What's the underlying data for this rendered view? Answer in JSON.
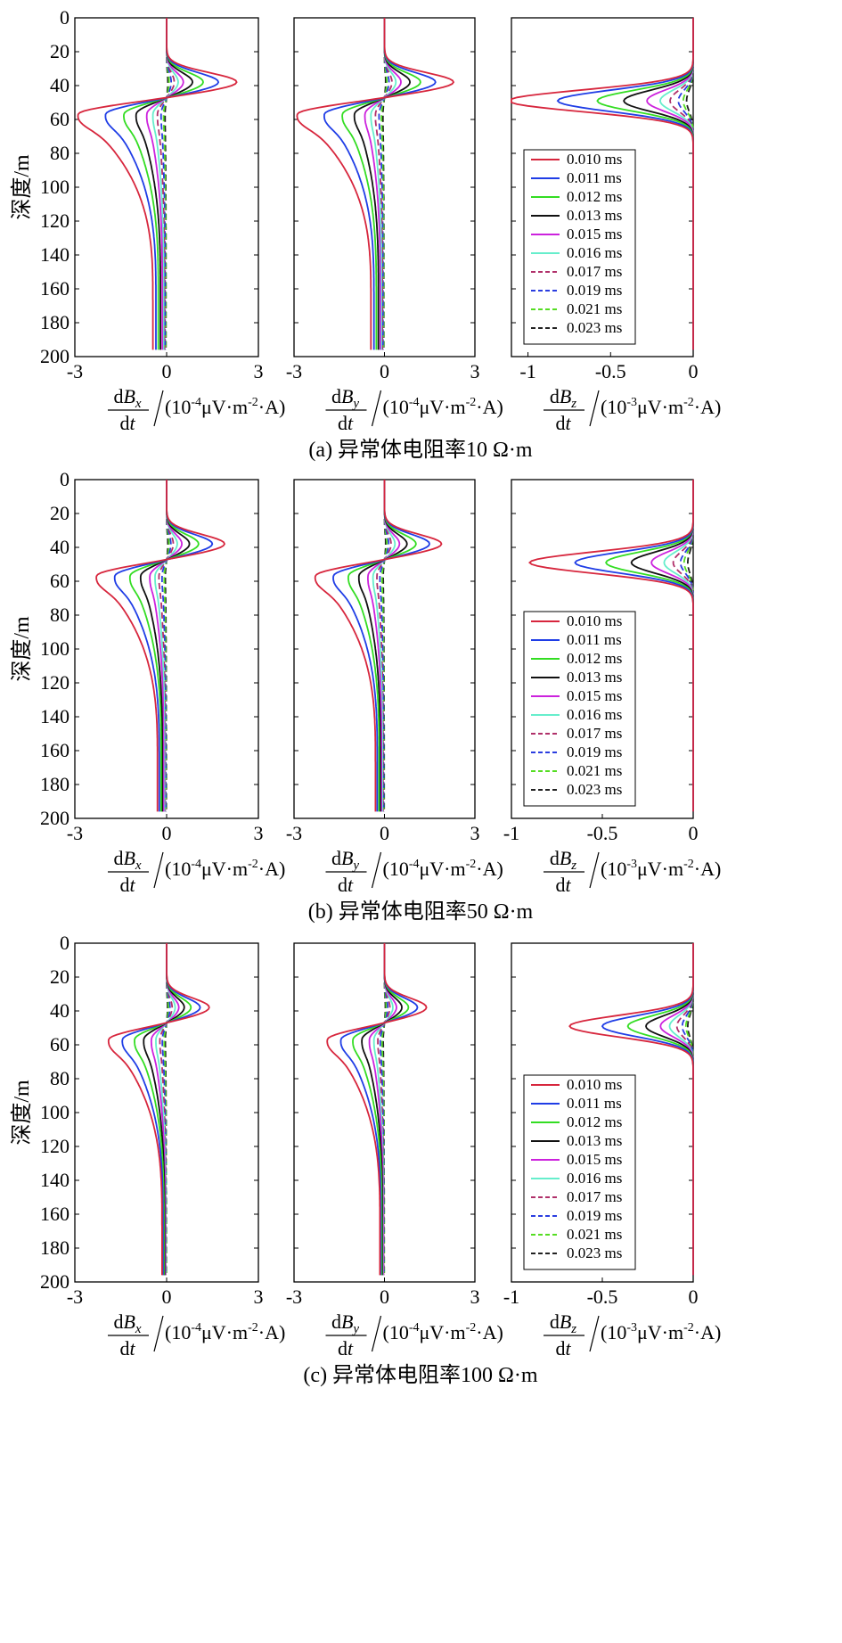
{
  "chart_data": [
    {
      "panel_caption": "(a) 异常体电阻率10 Ω·m",
      "ylabel": "深度/m",
      "ylim": [
        200,
        0
      ],
      "yticks": [
        0,
        20,
        40,
        60,
        80,
        100,
        120,
        140,
        160,
        180,
        200
      ],
      "legend": [
        "0.010 ms",
        "0.011 ms",
        "0.012 ms",
        "0.013 ms",
        "0.015 ms",
        "0.016 ms",
        "0.017 ms",
        "0.019 ms",
        "0.021 ms",
        "0.023 ms"
      ],
      "charts": [
        {
          "type": "line",
          "component": "x",
          "xlabel_unit": "/(10-4μV·m-2·A)",
          "xlim": [
            -3,
            3
          ],
          "xticks": [
            "-3",
            "0",
            "3"
          ],
          "peak_pos": [
            2.3,
            1.7,
            1.2,
            0.85,
            0.55,
            0.38,
            0.25,
            0.15,
            0.08,
            0.04
          ],
          "peak_neg": [
            -2.9,
            -2.0,
            -1.4,
            -1.0,
            -0.65,
            -0.45,
            -0.3,
            -0.18,
            -0.1,
            -0.05
          ],
          "deep_value_200m": [
            -0.45,
            -0.35,
            -0.27,
            -0.2,
            -0.14,
            -0.1,
            -0.07,
            -0.05,
            -0.03,
            -0.02
          ]
        },
        {
          "type": "line",
          "component": "y",
          "xlabel_unit": "/(10-4μV·m-2·A)",
          "xlim": [
            -3,
            3
          ],
          "xticks": [
            "-3",
            "0",
            "3"
          ],
          "peak_pos": [
            2.3,
            1.7,
            1.2,
            0.85,
            0.55,
            0.38,
            0.25,
            0.15,
            0.08,
            0.04
          ],
          "peak_neg": [
            -2.9,
            -2.0,
            -1.4,
            -1.0,
            -0.65,
            -0.45,
            -0.3,
            -0.18,
            -0.1,
            -0.05
          ],
          "deep_value_200m": [
            -0.45,
            -0.35,
            -0.27,
            -0.2,
            -0.14,
            -0.1,
            -0.07,
            -0.05,
            -0.03,
            -0.02
          ]
        },
        {
          "type": "line",
          "component": "z",
          "xlabel_unit": "/(10-3μV·m-2·A)",
          "xlim": [
            -1.1,
            0
          ],
          "xticks": [
            "-1",
            "-0.5",
            "0"
          ],
          "xtick_values": [
            -1,
            -0.5,
            0
          ],
          "peak": [
            -1.12,
            -0.82,
            -0.58,
            -0.42,
            -0.28,
            -0.2,
            -0.14,
            -0.09,
            -0.06,
            -0.04
          ]
        }
      ]
    },
    {
      "panel_caption": "(b) 异常体电阻率50 Ω·m",
      "ylabel": "深度/m",
      "ylim": [
        200,
        0
      ],
      "yticks": [
        0,
        20,
        40,
        60,
        80,
        100,
        120,
        140,
        160,
        180,
        200
      ],
      "legend": [
        "0.010 ms",
        "0.011 ms",
        "0.012 ms",
        "0.013 ms",
        "0.015 ms",
        "0.016 ms",
        "0.017 ms",
        "0.019 ms",
        "0.021 ms",
        "0.023 ms"
      ],
      "charts": [
        {
          "type": "line",
          "component": "x",
          "xlabel_unit": "/(10-4μV·m-2·A)",
          "xlim": [
            -3,
            3
          ],
          "xticks": [
            "-3",
            "0",
            "3"
          ],
          "peak_pos": [
            1.9,
            1.5,
            1.05,
            0.75,
            0.5,
            0.35,
            0.22,
            0.14,
            0.08,
            0.04
          ],
          "peak_neg": [
            -2.3,
            -1.7,
            -1.2,
            -0.85,
            -0.55,
            -0.38,
            -0.25,
            -0.15,
            -0.08,
            -0.04
          ],
          "deep_value_200m": [
            -0.3,
            -0.24,
            -0.18,
            -0.14,
            -0.1,
            -0.07,
            -0.05,
            -0.03,
            -0.02,
            -0.01
          ]
        },
        {
          "type": "line",
          "component": "y",
          "xlabel_unit": "/(10-4μV·m-2·A)",
          "xlim": [
            -3,
            3
          ],
          "xticks": [
            "-3",
            "0",
            "3"
          ],
          "peak_pos": [
            1.9,
            1.5,
            1.05,
            0.75,
            0.5,
            0.35,
            0.22,
            0.14,
            0.08,
            0.04
          ],
          "peak_neg": [
            -2.3,
            -1.7,
            -1.2,
            -0.85,
            -0.55,
            -0.38,
            -0.25,
            -0.15,
            -0.08,
            -0.04
          ],
          "deep_value_200m": [
            -0.3,
            -0.24,
            -0.18,
            -0.14,
            -0.1,
            -0.07,
            -0.05,
            -0.03,
            -0.02,
            -0.01
          ]
        },
        {
          "type": "line",
          "component": "z",
          "xlabel_unit": "/(10-3μV·m-2·A)",
          "xlim": [
            -1,
            0
          ],
          "xticks": [
            "-1",
            "-0.5",
            "0"
          ],
          "xtick_values": [
            -1,
            -0.5,
            0
          ],
          "peak": [
            -0.9,
            -0.65,
            -0.48,
            -0.34,
            -0.23,
            -0.16,
            -0.11,
            -0.07,
            -0.05,
            -0.03
          ]
        }
      ]
    },
    {
      "panel_caption": "(c) 异常体电阻率100 Ω·m",
      "ylabel": "深度/m",
      "ylim": [
        200,
        0
      ],
      "yticks": [
        0,
        20,
        40,
        60,
        80,
        100,
        120,
        140,
        160,
        180,
        200
      ],
      "legend": [
        "0.010 ms",
        "0.011 ms",
        "0.012 ms",
        "0.013 ms",
        "0.015 ms",
        "0.016 ms",
        "0.017 ms",
        "0.019 ms",
        "0.021 ms",
        "0.023 ms"
      ],
      "charts": [
        {
          "type": "line",
          "component": "x",
          "xlabel_unit": "/(10-4μV·m-2·A)",
          "xlim": [
            -3,
            3
          ],
          "xticks": [
            "-3",
            "0",
            "3"
          ],
          "peak_pos": [
            1.4,
            1.1,
            0.8,
            0.58,
            0.4,
            0.28,
            0.18,
            0.11,
            0.06,
            0.03
          ],
          "peak_neg": [
            -1.9,
            -1.45,
            -1.05,
            -0.75,
            -0.5,
            -0.35,
            -0.22,
            -0.14,
            -0.08,
            -0.04
          ],
          "deep_value_200m": [
            -0.15,
            -0.12,
            -0.09,
            -0.07,
            -0.05,
            -0.04,
            -0.03,
            -0.02,
            -0.01,
            -0.01
          ]
        },
        {
          "type": "line",
          "component": "y",
          "xlabel_unit": "/(10-4μV·m-2·A)",
          "xlim": [
            -3,
            3
          ],
          "xticks": [
            "-3",
            "0",
            "3"
          ],
          "peak_pos": [
            1.4,
            1.1,
            0.8,
            0.58,
            0.4,
            0.28,
            0.18,
            0.11,
            0.06,
            0.03
          ],
          "peak_neg": [
            -1.9,
            -1.45,
            -1.05,
            -0.75,
            -0.5,
            -0.35,
            -0.22,
            -0.14,
            -0.08,
            -0.04
          ],
          "deep_value_200m": [
            -0.15,
            -0.12,
            -0.09,
            -0.07,
            -0.05,
            -0.04,
            -0.03,
            -0.02,
            -0.01,
            -0.01
          ]
        },
        {
          "type": "line",
          "component": "z",
          "xlabel_unit": "/(10-3μV·m-2·A)",
          "xlim": [
            -1,
            0
          ],
          "xticks": [
            "-1",
            "-0.5",
            "0"
          ],
          "xtick_values": [
            -1,
            -0.5,
            0
          ],
          "peak": [
            -0.68,
            -0.5,
            -0.36,
            -0.26,
            -0.18,
            -0.13,
            -0.09,
            -0.06,
            -0.04,
            -0.03
          ]
        }
      ]
    }
  ],
  "style": {
    "series_colors": [
      "#d7263d",
      "#1f3de6",
      "#33dd22",
      "#111111",
      "#cc22dd",
      "#66eecc",
      "#b0306a",
      "#2a3de0",
      "#55dd22",
      "#222222"
    ],
    "series_dash": [
      "",
      "",
      "",
      "",
      "",
      "",
      "7,4",
      "7,4",
      "7,4",
      "7,4"
    ]
  }
}
